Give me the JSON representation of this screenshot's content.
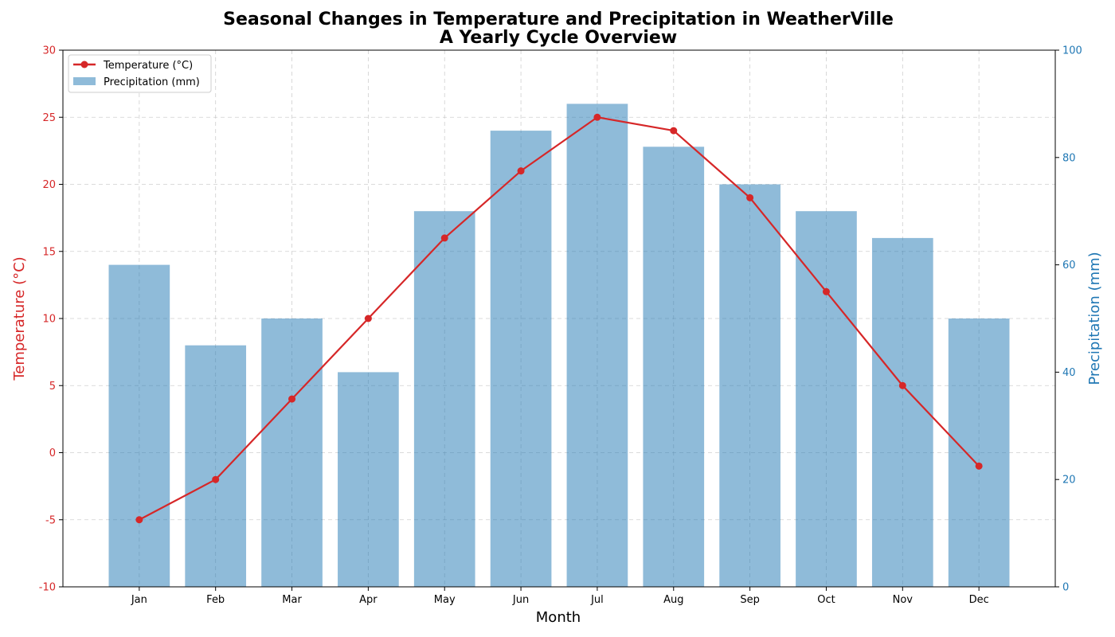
{
  "chart_data": {
    "type": "bar+line",
    "title_lines": [
      "Seasonal Changes in Temperature and Precipitation in WeatherVille",
      "A Yearly Cycle Overview"
    ],
    "xlabel": "Month",
    "categories": [
      "Jan",
      "Feb",
      "Mar",
      "Apr",
      "May",
      "Jun",
      "Jul",
      "Aug",
      "Sep",
      "Oct",
      "Nov",
      "Dec"
    ],
    "series": [
      {
        "name": "Temperature (°C)",
        "type": "line",
        "axis": "left",
        "color": "#d62728",
        "marker": "circle",
        "values": [
          -5,
          -2,
          4,
          10,
          16,
          21,
          25,
          24,
          19,
          12,
          5,
          -1
        ]
      },
      {
        "name": "Precipitation (mm)",
        "type": "bar",
        "axis": "right",
        "color": "#1f77b4",
        "opacity": 0.5,
        "values": [
          60,
          45,
          50,
          40,
          70,
          85,
          90,
          82,
          75,
          70,
          65,
          50
        ]
      }
    ],
    "y_left": {
      "label": "Temperature (°C)",
      "color": "#d62728",
      "ylim": [
        -10,
        30
      ],
      "ticks": [
        -10,
        -5,
        0,
        5,
        10,
        15,
        20,
        25,
        30
      ]
    },
    "y_right": {
      "label": "Precipitation (mm)",
      "color": "#1f77b4",
      "ylim": [
        0,
        100
      ],
      "ticks": [
        0,
        20,
        40,
        60,
        80,
        100
      ]
    },
    "grid": true,
    "grid_style": "dashed",
    "legend_position": "top-left"
  }
}
